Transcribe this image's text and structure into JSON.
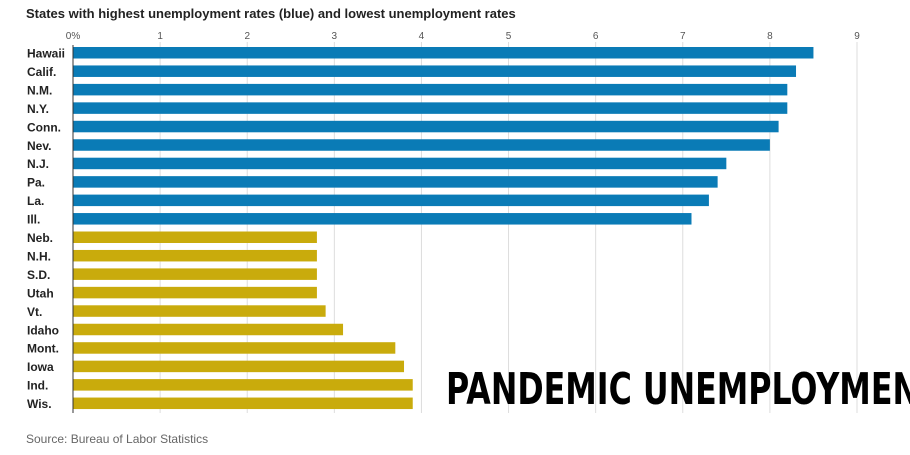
{
  "title": "States with highest unemployment rates (blue) and lowest unemployment rates",
  "source": "Source: Bureau of Labor Statistics",
  "overlay_caption": "PANDEMIC UNEMPLOYMENT",
  "colors": {
    "highest": "#0a7bb6",
    "lowest": "#c9ab0c",
    "grid": "#dddddd",
    "axis": "#333333"
  },
  "chart_data": {
    "type": "bar",
    "orientation": "horizontal",
    "title": "States with highest unemployment rates (blue) and lowest unemployment rates",
    "xlim": [
      0,
      9
    ],
    "x_ticks": [
      "0%",
      "1",
      "2",
      "3",
      "4",
      "5",
      "6",
      "7",
      "8",
      "9"
    ],
    "grid": true,
    "categories": [
      "Hawaii",
      "Calif.",
      "N.M.",
      "N.Y.",
      "Conn.",
      "Nev.",
      "N.J.",
      "Pa.",
      "La.",
      "Ill.",
      "Neb.",
      "N.H.",
      "S.D.",
      "Utah",
      "Vt.",
      "Idaho",
      "Mont.",
      "Iowa",
      "Ind.",
      "Wis."
    ],
    "values": [
      8.5,
      8.3,
      8.2,
      8.2,
      8.1,
      8.0,
      7.5,
      7.4,
      7.3,
      7.1,
      2.8,
      2.8,
      2.8,
      2.8,
      2.9,
      3.1,
      3.7,
      3.8,
      3.9,
      3.9
    ],
    "groups": [
      "highest",
      "highest",
      "highest",
      "highest",
      "highest",
      "highest",
      "highest",
      "highest",
      "highest",
      "highest",
      "lowest",
      "lowest",
      "lowest",
      "lowest",
      "lowest",
      "lowest",
      "lowest",
      "lowest",
      "lowest",
      "lowest"
    ]
  }
}
